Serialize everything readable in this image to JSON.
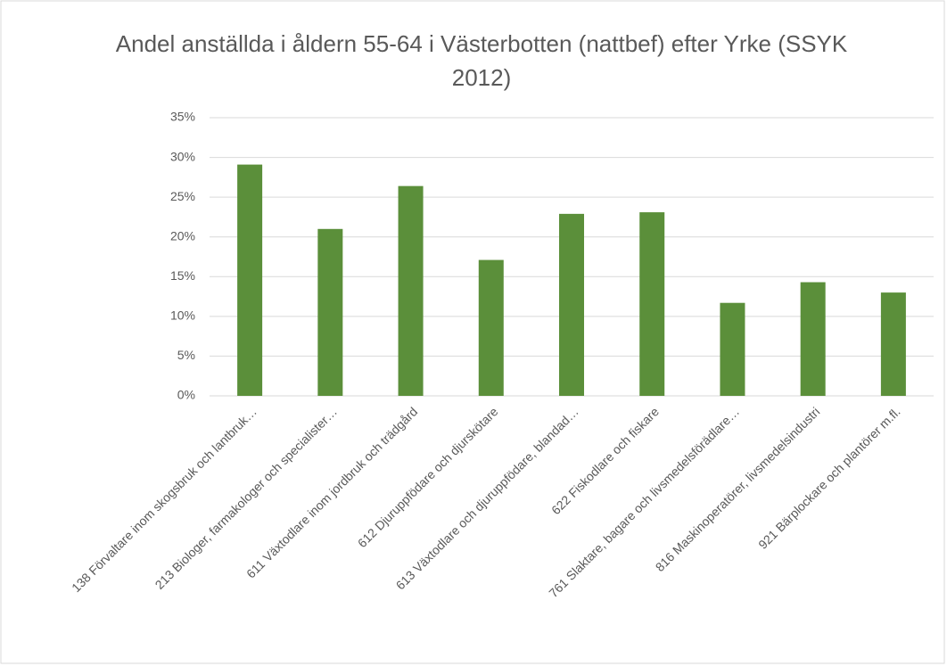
{
  "chart_data": {
    "type": "bar",
    "title": "Andel anställda i åldern 55-64 i Västerbotten (nattbef) efter Yrke (SSYK 2012)",
    "categories": [
      "138 Förvaltare inom skogsbruk och lantbruk…",
      "213 Biologer, farmakologer och specialister…",
      "611 Växtodlare inom jordbruk och trädgård",
      "612 Djuruppfödare och djurskötare",
      "613 Växtodlare och djuruppfödare, blandad…",
      "622 Fiskodlare och fiskare",
      "761 Slaktare, bagare och livsmedelsförädlare…",
      "816 Maskinoperatörer, livsmedelsindustri",
      "921 Bärplockare och plantörer m.fl."
    ],
    "values": [
      29.1,
      21.0,
      26.4,
      17.1,
      22.9,
      23.1,
      11.7,
      14.3,
      13.0
    ],
    "color": "#5b8f3a",
    "ylim": [
      0,
      35
    ],
    "yticks": [
      {
        "value": 0,
        "label": "0%"
      },
      {
        "value": 5,
        "label": "5%"
      },
      {
        "value": 10,
        "label": "10%"
      },
      {
        "value": 15,
        "label": "15%"
      },
      {
        "value": 20,
        "label": "20%"
      },
      {
        "value": 25,
        "label": "25%"
      },
      {
        "value": 30,
        "label": "30%"
      },
      {
        "value": 35,
        "label": "35%"
      }
    ],
    "grid": true
  }
}
